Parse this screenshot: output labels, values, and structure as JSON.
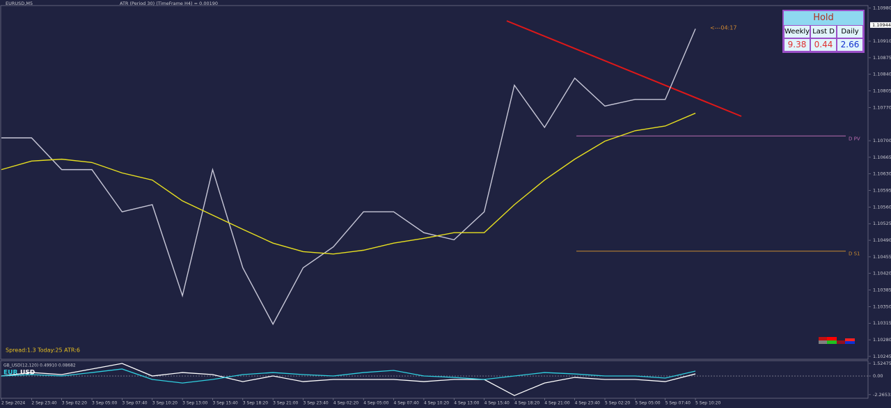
{
  "chart_data": [
    {
      "type": "line",
      "title": "EURUSD,M5",
      "subtitle": "ATR (Period 30) (TimeFrame H4) = 0.00190",
      "categories": [
        "2 Sep 2024",
        "2 Sep 23:40",
        "3 Sep 02:20",
        "3 Sep 05:00",
        "3 Sep 07:40",
        "3 Sep 10:20",
        "3 Sep 13:00",
        "3 Sep 15:40",
        "3 Sep 18:20",
        "3 Sep 21:00",
        "3 Sep 23:40",
        "4 Sep 02:20",
        "4 Sep 05:00",
        "4 Sep 07:40",
        "4 Sep 10:20",
        "4 Sep 13:00",
        "4 Sep 15:40",
        "4 Sep 18:20",
        "4 Sep 21:00",
        "4 Sep 23:40",
        "5 Sep 02:20",
        "5 Sep 05:00",
        "5 Sep 07:40",
        "5 Sep 10:20"
      ],
      "series": [
        {
          "color": "#c8c8d8",
          "values": [
            1.10706,
            1.10706,
            1.10639,
            1.10639,
            1.1055,
            1.10565,
            1.10373,
            1.10639,
            1.10432,
            1.10313,
            1.10432,
            1.10476,
            1.1055,
            1.1055,
            1.10506,
            1.10491,
            1.1055,
            1.10817,
            1.10728,
            1.10832,
            1.10773,
            1.10787,
            1.10787,
            1.10936
          ]
        },
        {
          "color": "#e8e020",
          "values": [
            1.10639,
            1.10657,
            1.10661,
            1.10654,
            1.10632,
            1.10617,
            1.10573,
            1.10543,
            1.10513,
            1.10484,
            1.10466,
            1.10461,
            1.10469,
            1.10484,
            1.10494,
            1.10506,
            1.10506,
            1.10565,
            1.10617,
            1.10661,
            1.10699,
            1.10721,
            1.10731,
            1.10758
          ]
        }
      ],
      "levels": [
        {
          "label": "D PV",
          "value": 1.1071,
          "color": "#b86cb0"
        },
        {
          "label": "D S1",
          "value": 1.10467,
          "color": "#c88a30"
        }
      ],
      "current_price": {
        "value": 1.10944,
        "label": "1.10944"
      },
      "countdown": "<---04:17",
      "status": "Spread:1.3   Today:25   ATR:6",
      "ylim": [
        1.10239,
        1.10985
      ],
      "yticks": [
        {
          "value": 1.1098,
          "label": "1.10980"
        },
        {
          "value": 1.1091,
          "label": "1.10910"
        },
        {
          "value": 1.10875,
          "label": "1.10875"
        },
        {
          "value": 1.1084,
          "label": "1.10840"
        },
        {
          "value": 1.10805,
          "label": "1.10805"
        },
        {
          "value": 1.1077,
          "label": "1.10770"
        },
        {
          "value": 1.107,
          "label": "1.10700"
        },
        {
          "value": 1.10665,
          "label": "1.10665"
        },
        {
          "value": 1.1063,
          "label": "1.10630"
        },
        {
          "value": 1.10595,
          "label": "1.10595"
        },
        {
          "value": 1.1056,
          "label": "1.10560"
        },
        {
          "value": 1.10525,
          "label": "1.10525"
        },
        {
          "value": 1.1049,
          "label": "1.10490"
        },
        {
          "value": 1.10455,
          "label": "1.10455"
        },
        {
          "value": 1.1042,
          "label": "1.10420"
        },
        {
          "value": 1.10385,
          "label": "1.10385"
        },
        {
          "value": 1.1035,
          "label": "1.10350"
        },
        {
          "value": 1.10315,
          "label": "1.10315"
        },
        {
          "value": 1.1028,
          "label": "1.10280"
        },
        {
          "value": 1.10245,
          "label": "1.10245"
        }
      ],
      "table": {
        "title": "Hold",
        "headers": [
          "Weekly",
          "Last D",
          "Daily"
        ],
        "values": [
          9.38,
          0.44,
          2.66
        ],
        "colors": [
          "#e03030",
          "#e03030",
          "#1030d0"
        ]
      }
    },
    {
      "type": "line",
      "title": "GB_USD(12,120) 0.49910 0.08682",
      "series": [
        {
          "name": "EUR",
          "color": "#ffffff",
          "values": [
            0,
            0.42,
            0.17,
            0.85,
            1.52,
            0,
            0.42,
            0.17,
            -0.68,
            0,
            -0.68,
            -0.42,
            -0.42,
            -0.42,
            -0.68,
            -0.42,
            -0.42,
            -2.37,
            -0.85,
            -0.17,
            -0.42,
            -0.42,
            -0.68,
            0.25
          ]
        },
        {
          "name": "USD",
          "color": "#30d0e0",
          "values": [
            0,
            0.17,
            0,
            0.42,
            0.85,
            -0.42,
            -0.85,
            -0.42,
            0.17,
            0.42,
            0.17,
            0,
            0.42,
            0.68,
            0,
            -0.17,
            -0.42,
            0,
            0.42,
            0.25,
            0,
            0,
            -0.25,
            0.59
          ]
        }
      ],
      "ylim": [
        -2.7,
        1.86
      ],
      "yticks": [
        1.52475,
        {
          "value": 0,
          "label": "0.00"
        },
        -2.26533
      ]
    }
  ]
}
